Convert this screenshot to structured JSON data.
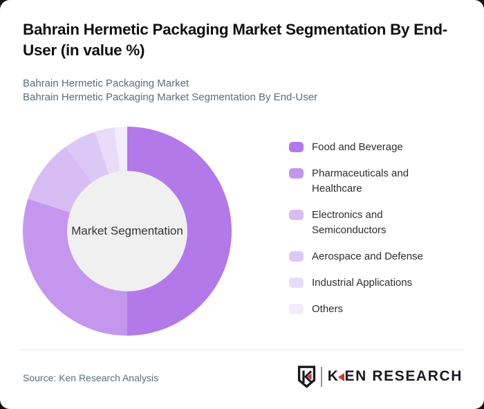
{
  "title": "Bahrain Hermetic Packaging Market Segmentation By End-User (in value %)",
  "subtitle_line1": "Bahrain Hermetic Packaging Market",
  "subtitle_line2": "Bahrain Hermetic Packaging Market Segmentation By End-User",
  "chart_data": {
    "type": "pie",
    "variant": "donut",
    "title": "Bahrain Hermetic Packaging Market Segmentation By End-User (in value %)",
    "center_label": "Market Segmentation",
    "categories": [
      "Food and Beverage",
      "Pharmaceuticals and Healthcare",
      "Electronics and Semiconductors",
      "Aerospace and Defense",
      "Industrial Applications",
      "Others"
    ],
    "values": [
      50,
      30,
      10,
      5,
      3,
      2
    ],
    "unit": "% of value (estimated from arc angles; no data labels shown)",
    "colors": [
      "#b379e8",
      "#c596ee",
      "#d7bdf3",
      "#dcc8f5",
      "#e9dcf9",
      "#f2ecfc"
    ],
    "hole_color": "#f0f0f0",
    "start_angle_deg": 0,
    "direction": "clockwise",
    "legend_position": "right"
  },
  "footer": {
    "source": "Source: Ken Research Analysis",
    "logo": {
      "shield_letter": "K",
      "text_k": "K",
      "text_rest": "EN RESEARCH",
      "accent_color": "#cd3529",
      "dark_color": "#191923"
    }
  }
}
